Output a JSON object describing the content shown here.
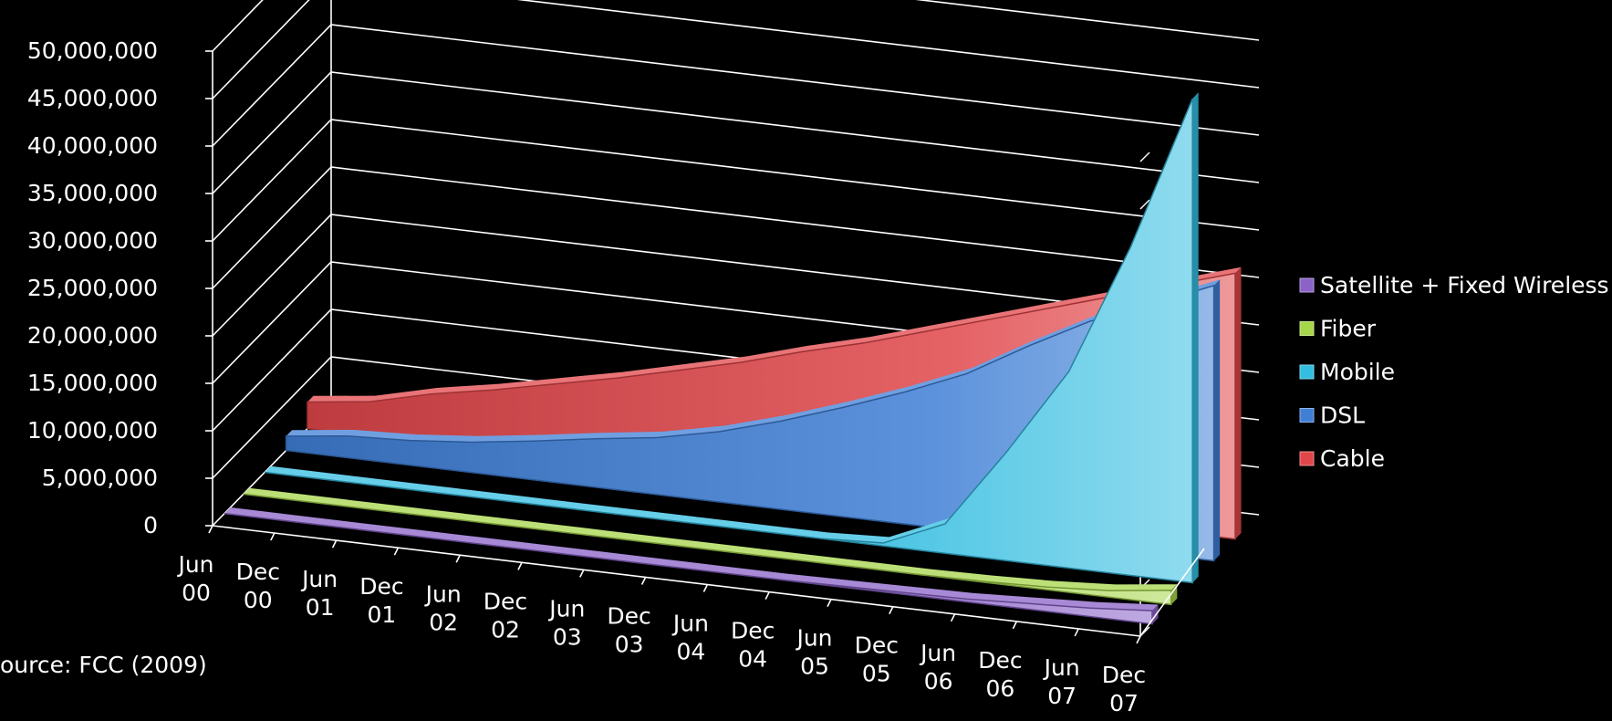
{
  "chart_data": {
    "type": "area",
    "three_d": true,
    "x": [
      "Jun 00",
      "Dec 00",
      "Jun 01",
      "Dec 01",
      "Jun 02",
      "Dec 02",
      "Jun 03",
      "Dec 03",
      "Jun 04",
      "Dec 04",
      "Jun 05",
      "Dec 05",
      "Jun 06",
      "Dec 06",
      "Jun 07",
      "Dec 07"
    ],
    "x_tick_labels": [
      [
        "Jun",
        "00"
      ],
      [
        "Dec",
        "00"
      ],
      [
        "Jun",
        "01"
      ],
      [
        "Dec",
        "01"
      ],
      [
        "Jun",
        "02"
      ],
      [
        "Dec",
        "02"
      ],
      [
        "Jun",
        "03"
      ],
      [
        "Dec",
        "03"
      ],
      [
        "Jun",
        "04"
      ],
      [
        "Dec",
        "04"
      ],
      [
        "Jun",
        "05"
      ],
      [
        "Dec",
        "05"
      ],
      [
        "Jun",
        "06"
      ],
      [
        "Dec",
        "06"
      ],
      [
        "Jun",
        "07"
      ],
      [
        "Dec",
        "07"
      ]
    ],
    "y_tick_labels": [
      "0",
      "5,000,000",
      "10,000,000",
      "15,000,000",
      "20,000,000",
      "25,000,000",
      "30,000,000",
      "35,000,000",
      "40,000,000",
      "45,000,000",
      "50,000,000"
    ],
    "ylim": [
      0,
      50000000
    ],
    "grid": true,
    "legend_position": "right",
    "series": [
      {
        "name": "Cable",
        "color": "#e0464a",
        "values": [
          2800000,
          3600000,
          5200000,
          6400000,
          7800000,
          9200000,
          10800000,
          12400000,
          14300000,
          16000000,
          18000000,
          20000000,
          22000000,
          24000000,
          26000000,
          28000000
        ]
      },
      {
        "name": "DSL",
        "color": "#3f7fd6",
        "values": [
          1500000,
          2300000,
          2600000,
          3200000,
          4100000,
          5100000,
          6000000,
          7400000,
          9300000,
          11500000,
          13900000,
          16600000,
          20300000,
          23700000,
          26300000,
          29000000
        ]
      },
      {
        "name": "Mobile",
        "color": "#33bde0",
        "values": [
          0,
          0,
          0,
          0,
          0,
          0,
          0,
          0,
          0,
          0,
          300000,
          3100000,
          11500000,
          20700000,
          34600000,
          51000000
        ]
      },
      {
        "name": "Fiber",
        "color": "#a6d64a",
        "values": [
          0,
          0,
          0,
          0,
          0,
          0,
          0,
          0,
          0,
          0,
          0,
          0,
          100000,
          300000,
          700000,
          1500000
        ]
      },
      {
        "name": "Satellite + Fixed Wireless",
        "color": "#8a62c8",
        "values": [
          0,
          0,
          0,
          0,
          0,
          0,
          0,
          0,
          0,
          0,
          100000,
          200000,
          300000,
          600000,
          900000,
          1400000
        ]
      }
    ],
    "legend_order": [
      "Satellite + Fixed Wireless",
      "Fiber",
      "Mobile",
      "DSL",
      "Cable"
    ],
    "source": "ource: FCC (2009)"
  }
}
